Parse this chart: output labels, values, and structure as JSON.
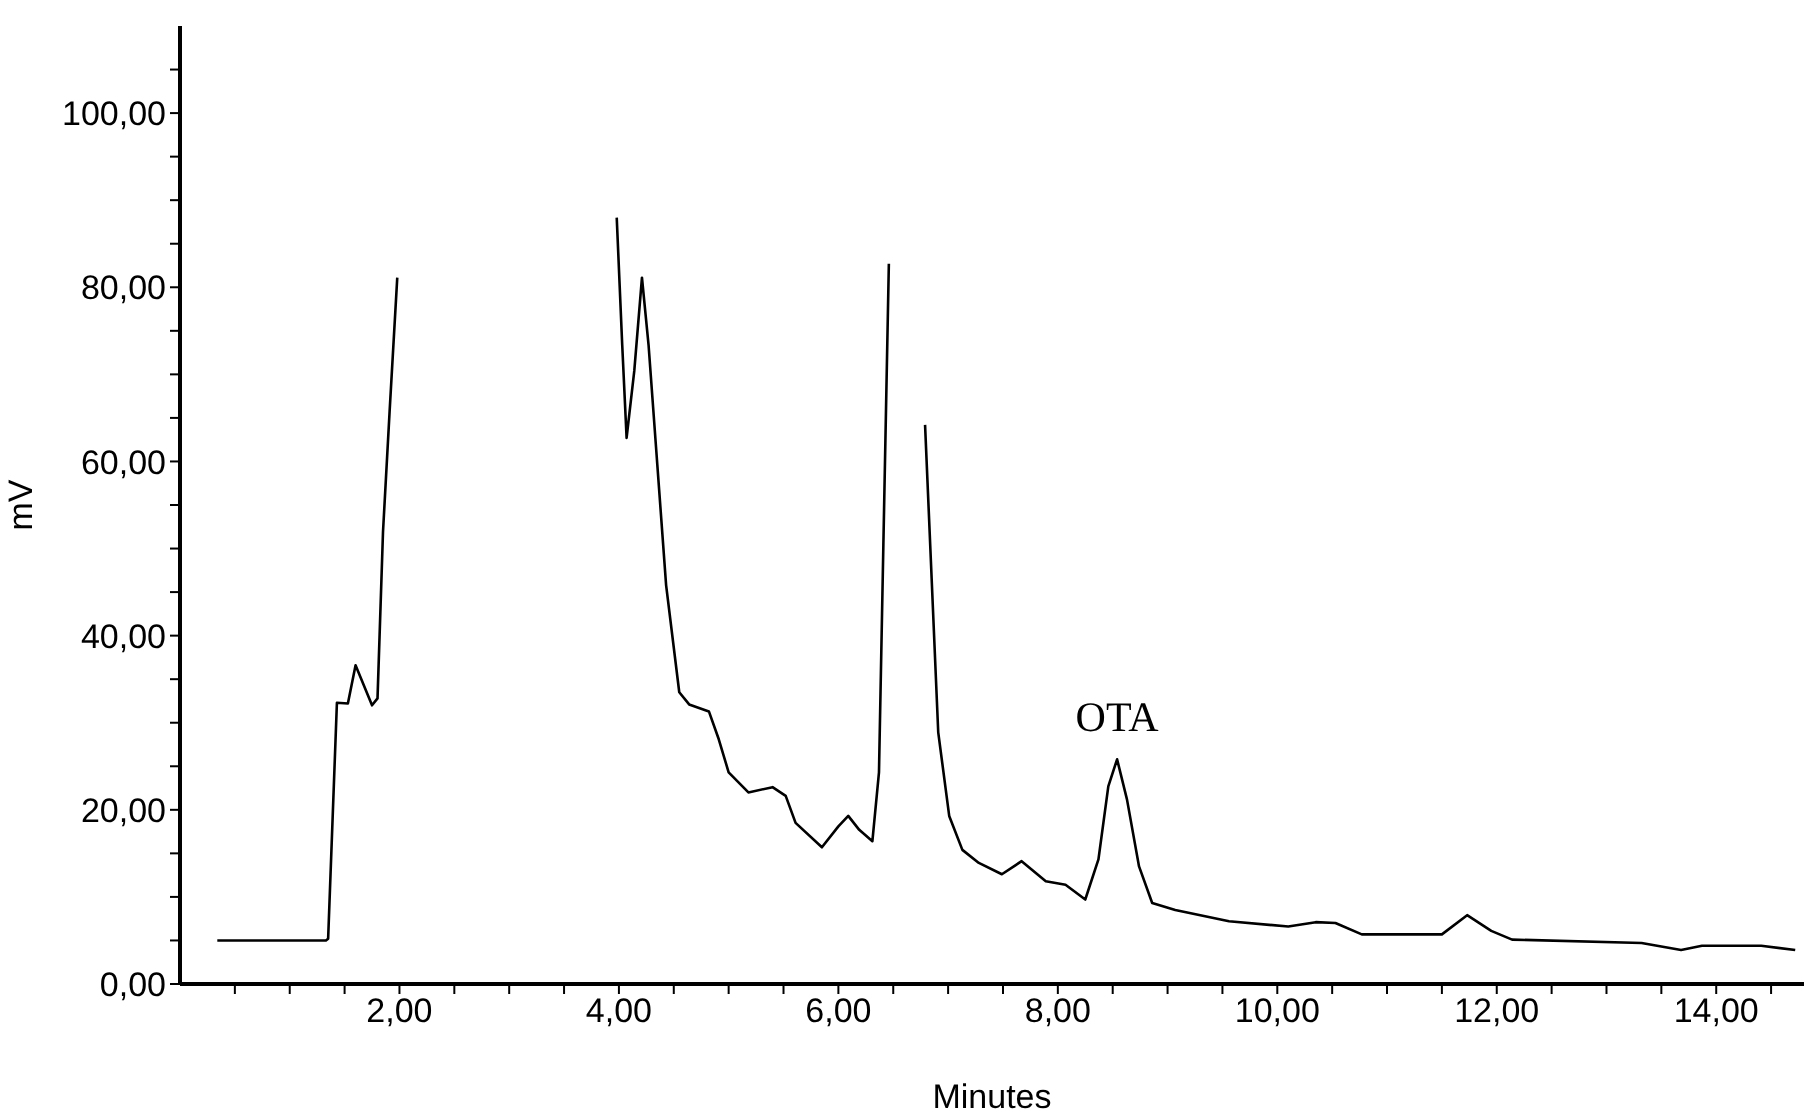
{
  "chart_data": {
    "type": "line",
    "xlabel": "Minutes",
    "ylabel": "mV",
    "marker": "none",
    "line_style": "solid",
    "xlim": [
      0,
      14.8
    ],
    "ylim": [
      0,
      110
    ],
    "xticks": [
      {
        "value": 0.5,
        "label": null
      },
      {
        "value": 1,
        "label": null
      },
      {
        "value": 1.5,
        "label": null
      },
      {
        "value": 2,
        "label": "2,00"
      },
      {
        "value": 2.5,
        "label": null
      },
      {
        "value": 3,
        "label": null
      },
      {
        "value": 3.5,
        "label": null
      },
      {
        "value": 4,
        "label": "4,00"
      },
      {
        "value": 4.5,
        "label": null
      },
      {
        "value": 5,
        "label": null
      },
      {
        "value": 5.5,
        "label": null
      },
      {
        "value": 6,
        "label": "6,00"
      },
      {
        "value": 6.5,
        "label": null
      },
      {
        "value": 7,
        "label": null
      },
      {
        "value": 7.5,
        "label": null
      },
      {
        "value": 8,
        "label": "8,00"
      },
      {
        "value": 8.5,
        "label": null
      },
      {
        "value": 9,
        "label": null
      },
      {
        "value": 9.5,
        "label": null
      },
      {
        "value": 10,
        "label": "10,00"
      },
      {
        "value": 10.5,
        "label": null
      },
      {
        "value": 11,
        "label": null
      },
      {
        "value": 11.5,
        "label": null
      },
      {
        "value": 12,
        "label": "12,00"
      },
      {
        "value": 12.5,
        "label": null
      },
      {
        "value": 13,
        "label": null
      },
      {
        "value": 13.5,
        "label": null
      },
      {
        "value": 14,
        "label": "14,00"
      },
      {
        "value": 14.5,
        "label": null
      }
    ],
    "yticks": [
      {
        "value": 0,
        "label": "0,00"
      },
      {
        "value": 5,
        "label": null
      },
      {
        "value": 10,
        "label": null
      },
      {
        "value": 15,
        "label": null
      },
      {
        "value": 20,
        "label": "20,00"
      },
      {
        "value": 25,
        "label": null
      },
      {
        "value": 30,
        "label": null
      },
      {
        "value": 35,
        "label": null
      },
      {
        "value": 40,
        "label": "40,00"
      },
      {
        "value": 45,
        "label": null
      },
      {
        "value": 50,
        "label": null
      },
      {
        "value": 55,
        "label": null
      },
      {
        "value": 60,
        "label": "60,00"
      },
      {
        "value": 65,
        "label": null
      },
      {
        "value": 70,
        "label": null
      },
      {
        "value": 75,
        "label": null
      },
      {
        "value": 80,
        "label": "80,00"
      },
      {
        "value": 85,
        "label": null
      },
      {
        "value": 90,
        "label": null
      },
      {
        "value": 95,
        "label": null
      },
      {
        "value": 100,
        "label": "100,00"
      },
      {
        "value": 105,
        "label": null
      }
    ],
    "annotations": [
      {
        "text": "OTA",
        "x": 8.54,
        "y": 25.8
      }
    ],
    "series": [
      {
        "color": "#000000",
        "x": [
          0.34,
          1.33,
          1.35,
          1.43,
          1.53,
          1.6,
          1.75,
          1.8,
          1.85,
          1.91,
          1.98,
          2.04,
          3.0,
          3.94,
          3.98,
          4.03,
          4.07,
          4.14,
          4.21,
          4.27,
          4.35,
          4.43,
          4.55,
          4.64,
          4.82,
          4.91,
          5.0,
          5.18,
          5.4,
          5.52,
          5.61,
          5.85,
          6.0,
          6.09,
          6.19,
          6.31,
          6.37,
          6.41,
          6.46,
          6.51,
          6.62,
          6.73,
          6.79,
          6.91,
          7.01,
          7.13,
          7.28,
          7.49,
          7.67,
          7.89,
          8.07,
          8.25,
          8.37,
          8.46,
          8.54,
          8.63,
          8.74,
          8.86,
          9.07,
          9.56,
          10.1,
          10.35,
          10.53,
          10.77,
          11.5,
          11.73,
          11.95,
          12.14,
          13.32,
          13.68,
          13.87,
          14.41,
          14.72
        ],
        "values": [
          5,
          5,
          5.2,
          32.3,
          32.2,
          36.6,
          32,
          32.8,
          51.9,
          65.7,
          81.1,
          null,
          null,
          null,
          88,
          73.4,
          62.7,
          70.4,
          81.1,
          73.4,
          59.6,
          45.8,
          33.5,
          32.1,
          31.3,
          28.1,
          24.3,
          22,
          22.6,
          21.6,
          18.5,
          15.7,
          18.1,
          19.3,
          17.7,
          16.4,
          24.3,
          50.4,
          82.7,
          null,
          null,
          null,
          64.2,
          28.9,
          19.3,
          15.4,
          13.9,
          12.6,
          14.1,
          11.8,
          11.4,
          9.7,
          14.3,
          22.7,
          25.8,
          21.2,
          13.5,
          9.3,
          8.5,
          7.2,
          6.6,
          7.1,
          7,
          5.7,
          5.7,
          7.9,
          6.1,
          5.1,
          4.7,
          3.9,
          4.4,
          4.4,
          3.9
        ]
      }
    ]
  }
}
